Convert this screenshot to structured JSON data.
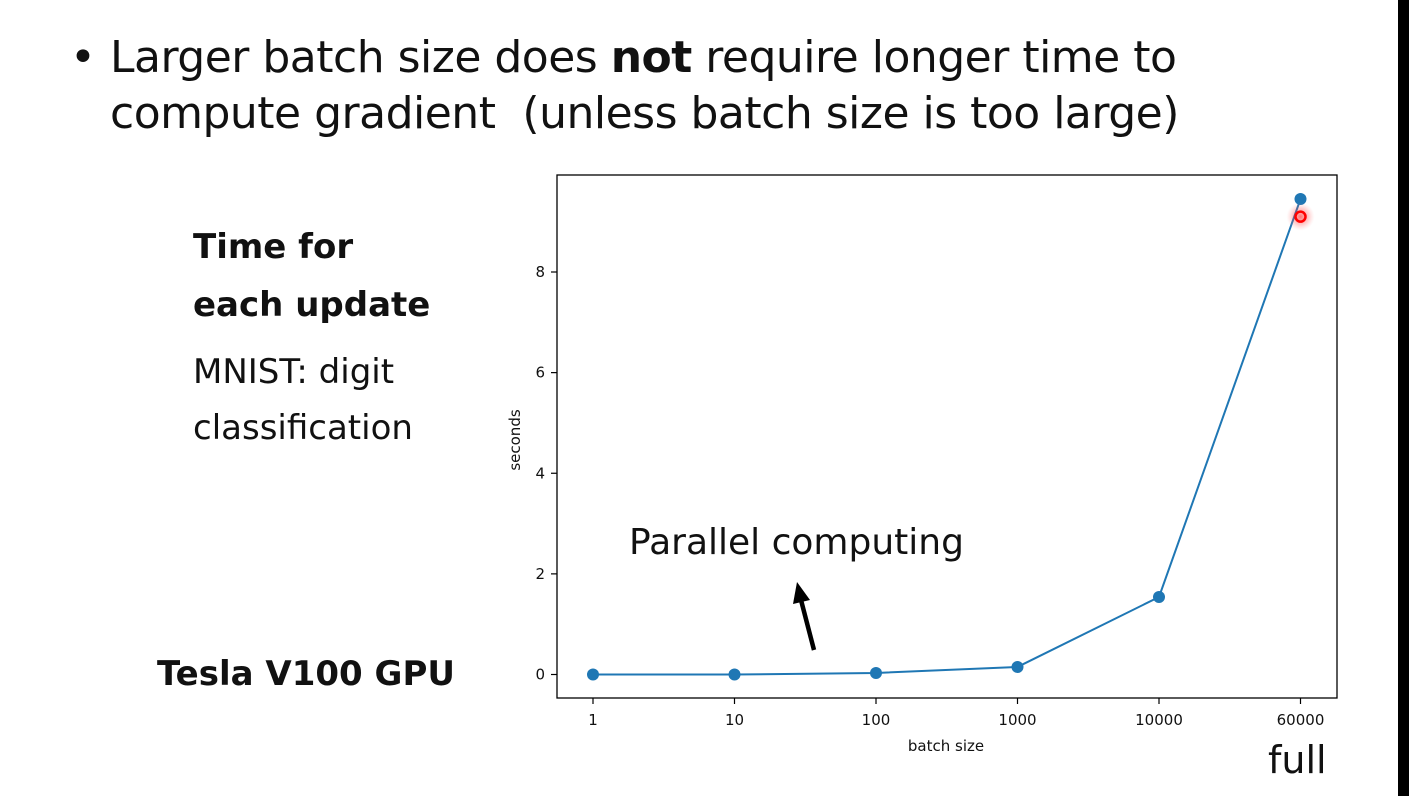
{
  "slide": {
    "bullet": "•",
    "title_line1_pre": "Larger batch size does ",
    "title_line1_bold": "not",
    "title_line1_post": " require longer time to",
    "title_line2": "compute gradient  (unless batch size is too large)",
    "side_heading_line1": "Time for",
    "side_heading_line2": "each update",
    "side_sub_line1": "MNIST: digit",
    "side_sub_line2": "classification",
    "gpu": "Tesla V100 GPU",
    "full": "full"
  },
  "chart_data": {
    "type": "line",
    "xlabel": "batch size",
    "ylabel": "seconds",
    "categories": [
      "1",
      "10",
      "100",
      "1000",
      "10000",
      "60000"
    ],
    "values": [
      0.0,
      0.0,
      0.03,
      0.15,
      1.54,
      9.45
    ],
    "ylim": [
      -0.5,
      9.9
    ],
    "yticks": [
      0,
      2,
      4,
      6,
      8
    ],
    "annotation": "Parallel computing",
    "highlight_value": 9.1,
    "colors": {
      "line": "#1f77b4",
      "highlight": "#ff0000"
    }
  }
}
